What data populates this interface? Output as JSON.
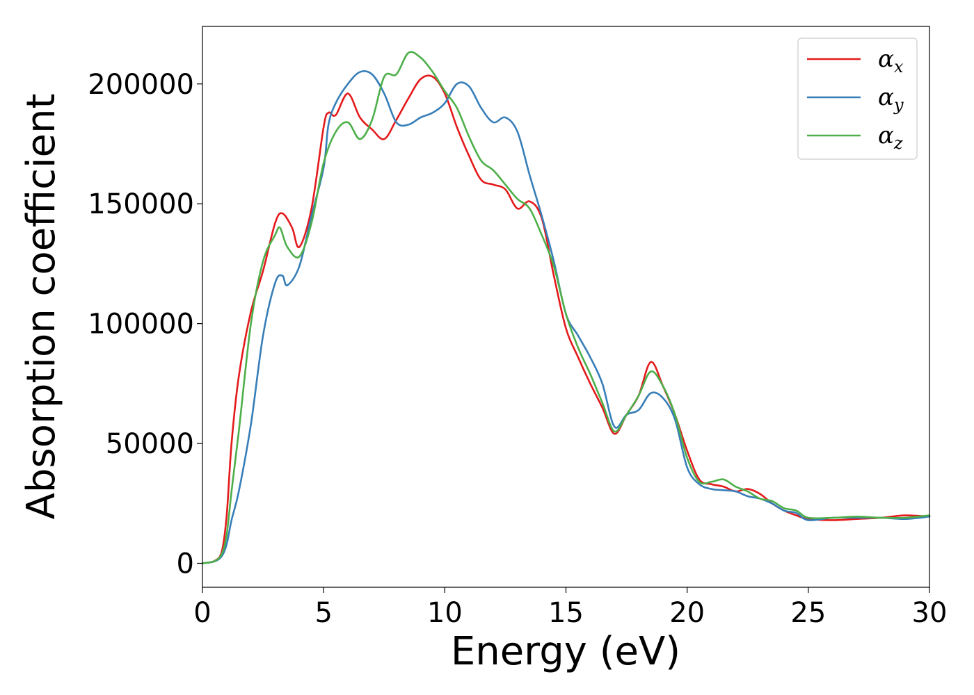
{
  "chart_data": {
    "type": "line",
    "title": "",
    "xlabel": "Energy (eV)",
    "ylabel": "Absorption coefficient",
    "xlim": [
      0,
      30
    ],
    "ylim": [
      -10000,
      224000
    ],
    "xticks": [
      0,
      5,
      10,
      15,
      20,
      25,
      30
    ],
    "xtick_labels": [
      "0",
      "5",
      "10",
      "15",
      "20",
      "25",
      "30"
    ],
    "yticks": [
      0,
      50000,
      100000,
      150000,
      200000
    ],
    "ytick_labels": [
      "0",
      "50000",
      "100000",
      "150000",
      "200000"
    ],
    "grid": false,
    "legend_position": "top-right",
    "series": [
      {
        "name": "α_x",
        "label_main": "α",
        "label_sub": "x",
        "color": "#e41a1c",
        "x": [
          0,
          0.5,
          0.8,
          1.0,
          1.2,
          1.5,
          2.0,
          2.5,
          3.0,
          3.3,
          3.7,
          4.0,
          4.5,
          5.0,
          5.2,
          5.5,
          6.0,
          6.5,
          7.0,
          7.5,
          8.0,
          8.5,
          9.0,
          9.5,
          10.0,
          10.5,
          11.0,
          11.5,
          12.0,
          12.5,
          13.0,
          13.5,
          14.0,
          14.5,
          15.0,
          15.5,
          16.0,
          16.5,
          17.0,
          17.5,
          18.0,
          18.5,
          19.0,
          19.5,
          20.0,
          20.5,
          21.0,
          21.5,
          22.0,
          22.5,
          23.0,
          23.5,
          24.0,
          24.5,
          25.0,
          26.0,
          27.0,
          28.0,
          29.0,
          30.0
        ],
        "y": [
          0,
          1000,
          5000,
          20000,
          50000,
          78000,
          105000,
          122000,
          142000,
          146000,
          140000,
          132000,
          148000,
          182000,
          188000,
          187000,
          196000,
          186000,
          181000,
          177000,
          185000,
          194000,
          202000,
          203000,
          196000,
          182000,
          170000,
          160000,
          158000,
          156000,
          148000,
          151000,
          144000,
          120000,
          98000,
          86000,
          75000,
          65000,
          54000,
          62000,
          70000,
          84000,
          74000,
          62000,
          47000,
          35000,
          33000,
          32000,
          30000,
          31000,
          29000,
          25000,
          22000,
          20000,
          18500,
          18000,
          18500,
          19000,
          20000,
          19500
        ]
      },
      {
        "name": "α_y",
        "label_main": "α",
        "label_sub": "y",
        "color": "#377eb8",
        "x": [
          0,
          0.5,
          0.8,
          1.0,
          1.2,
          1.5,
          2.0,
          2.5,
          3.0,
          3.3,
          3.5,
          4.0,
          4.5,
          5.0,
          5.2,
          5.5,
          6.0,
          6.5,
          7.0,
          7.5,
          8.0,
          8.5,
          9.0,
          9.5,
          10.0,
          10.5,
          11.0,
          11.5,
          12.0,
          12.5,
          13.0,
          13.5,
          14.0,
          14.5,
          15.0,
          15.5,
          16.0,
          16.5,
          17.0,
          17.5,
          18.0,
          18.5,
          19.0,
          19.5,
          20.0,
          20.5,
          21.0,
          21.5,
          22.0,
          22.5,
          23.0,
          23.5,
          24.0,
          24.5,
          25.0,
          26.0,
          27.0,
          28.0,
          29.0,
          30.0
        ],
        "y": [
          0,
          800,
          3000,
          8000,
          18000,
          30000,
          58000,
          95000,
          117000,
          120000,
          116000,
          124000,
          145000,
          165000,
          183000,
          192000,
          200000,
          205000,
          204000,
          196000,
          184000,
          183000,
          186000,
          188000,
          192000,
          200000,
          199000,
          190000,
          184000,
          186000,
          180000,
          162000,
          145000,
          126000,
          104000,
          95000,
          86000,
          75000,
          57000,
          62000,
          64000,
          71000,
          69000,
          60000,
          40000,
          33000,
          31000,
          30500,
          30000,
          28000,
          27000,
          25000,
          22000,
          21000,
          18000,
          19000,
          19000,
          19000,
          18500,
          19500
        ]
      },
      {
        "name": "α_z",
        "label_main": "α",
        "label_sub": "z",
        "color": "#4daf4a",
        "x": [
          0,
          0.5,
          0.8,
          1.0,
          1.2,
          1.5,
          2.0,
          2.5,
          3.0,
          3.2,
          3.5,
          4.0,
          4.5,
          5.0,
          5.5,
          6.0,
          6.5,
          7.0,
          7.5,
          8.0,
          8.5,
          9.0,
          9.5,
          10.0,
          10.5,
          11.0,
          11.5,
          12.0,
          12.5,
          13.0,
          13.5,
          14.0,
          14.5,
          15.0,
          15.5,
          16.0,
          16.5,
          17.0,
          17.5,
          18.0,
          18.5,
          19.0,
          19.5,
          20.0,
          20.5,
          21.0,
          21.5,
          22.0,
          22.5,
          23.0,
          23.5,
          24.0,
          24.5,
          25.0,
          26.0,
          27.0,
          28.0,
          29.0,
          30.0
        ],
        "y": [
          0,
          900,
          4000,
          12000,
          30000,
          55000,
          100000,
          126000,
          137000,
          140000,
          132000,
          128000,
          142000,
          167000,
          180000,
          184000,
          177000,
          185000,
          203000,
          204000,
          213000,
          211000,
          205000,
          197000,
          190000,
          178000,
          168000,
          164000,
          158000,
          152000,
          148000,
          137000,
          124000,
          104000,
          90000,
          79000,
          67000,
          55000,
          62000,
          70000,
          80000,
          74000,
          62000,
          44000,
          34000,
          34000,
          35000,
          32000,
          30000,
          27000,
          26000,
          23000,
          22000,
          19000,
          19000,
          19500,
          19000,
          19000,
          20000
        ]
      }
    ]
  }
}
